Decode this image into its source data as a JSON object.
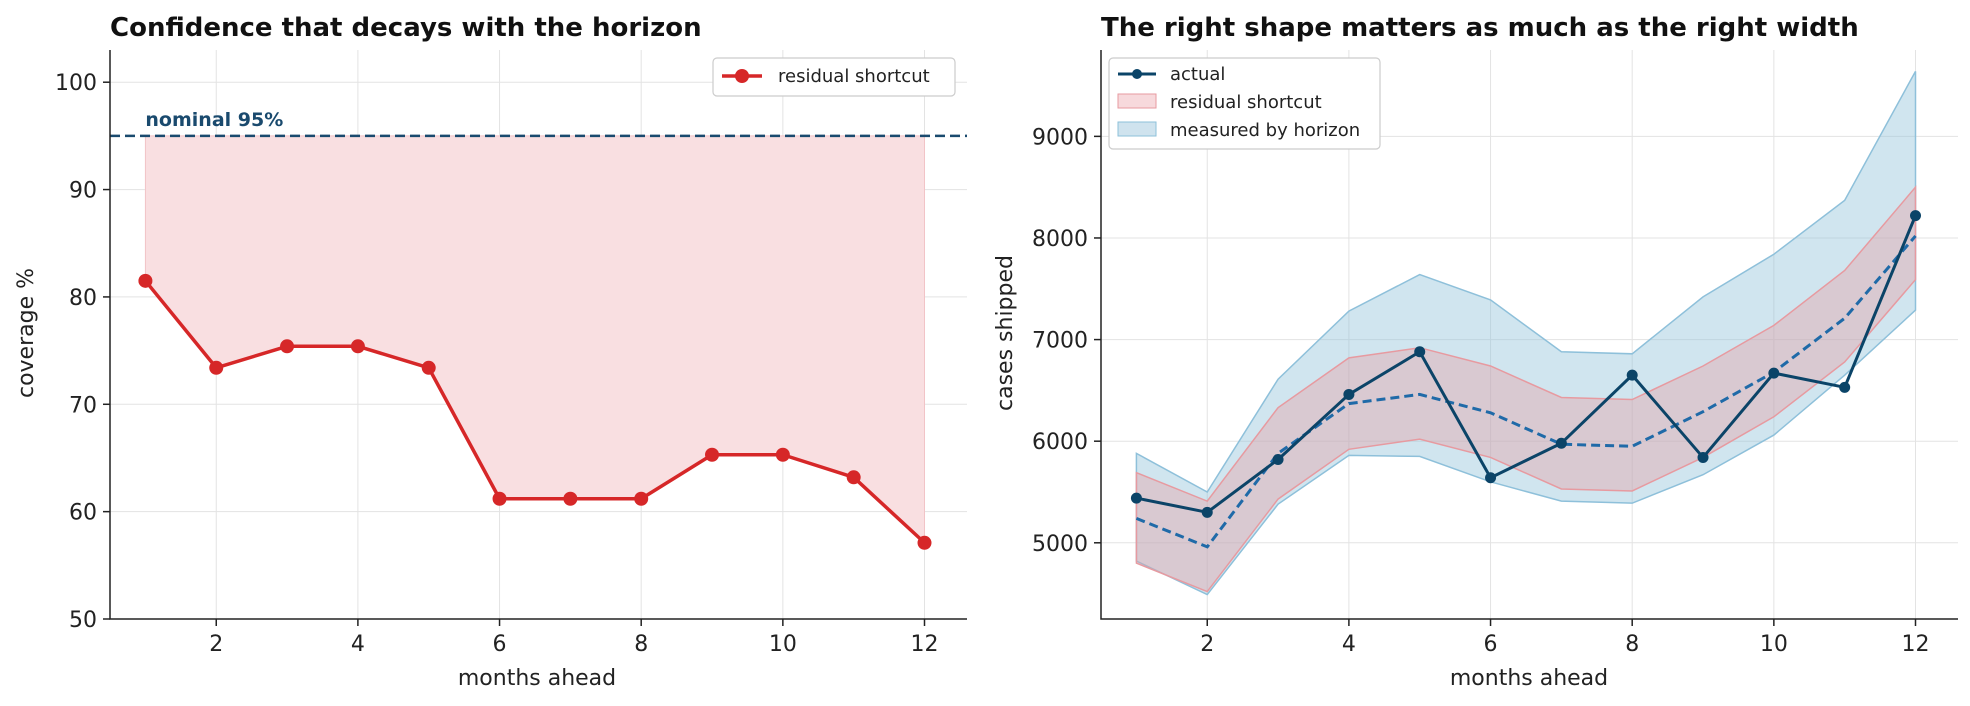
{
  "chart_data": [
    {
      "type": "line",
      "title": "Confidence that decays with the horizon",
      "xlabel": "months ahead",
      "ylabel": "coverage %",
      "xlim": [
        0.5,
        12.6
      ],
      "ylim": [
        50,
        103
      ],
      "xticks": [
        2,
        4,
        6,
        8,
        10,
        12
      ],
      "yticks": [
        50,
        60,
        70,
        80,
        90,
        100
      ],
      "grid": true,
      "legend_position": "upper right",
      "reference_line": {
        "y": 95,
        "label": "nominal 95%",
        "color": "#1a4a6e",
        "style": "dashed"
      },
      "series": [
        {
          "name": "residual shortcut",
          "color": "#d62728",
          "fill_to_reference": true,
          "x": [
            1,
            2,
            3,
            4,
            5,
            6,
            7,
            8,
            9,
            10,
            11,
            12
          ],
          "y": [
            81.5,
            73.4,
            75.4,
            75.4,
            73.4,
            61.2,
            61.2,
            61.2,
            65.3,
            65.3,
            63.2,
            57.1
          ]
        }
      ]
    },
    {
      "type": "line",
      "title": "The right shape matters as much as the right width",
      "xlabel": "months ahead",
      "ylabel": "cases shipped",
      "xlim": [
        0.5,
        12.6
      ],
      "ylim": [
        4250,
        9850
      ],
      "xticks": [
        2,
        4,
        6,
        8,
        10,
        12
      ],
      "yticks": [
        5000,
        6000,
        7000,
        8000,
        9000
      ],
      "grid": true,
      "legend_position": "upper left",
      "x": [
        1,
        2,
        3,
        4,
        5,
        6,
        7,
        8,
        9,
        10,
        11,
        12
      ],
      "series": [
        {
          "name": "actual",
          "color": "#0b4468",
          "values": [
            5440,
            5300,
            5820,
            6460,
            6880,
            5640,
            5980,
            6650,
            5840,
            6670,
            6530,
            8220
          ]
        },
        {
          "name": "",
          "color": "#1f6aa8",
          "style": "dashed",
          "values": [
            5240,
            4960,
            5880,
            6370,
            6460,
            6280,
            5970,
            5950,
            6290,
            6680,
            7210,
            8020
          ]
        }
      ],
      "bands": [
        {
          "name": "residual shortcut",
          "color": "#e79aa0",
          "lower": [
            4800,
            4520,
            5430,
            5920,
            6020,
            5840,
            5530,
            5510,
            5840,
            6240,
            6780,
            7590
          ],
          "upper": [
            5690,
            5410,
            6330,
            6820,
            6920,
            6740,
            6430,
            6410,
            6740,
            7140,
            7680,
            8500
          ]
        },
        {
          "name": "measured by horizon",
          "color": "#8ec0da",
          "lower": [
            4820,
            4490,
            5380,
            5860,
            5850,
            5600,
            5410,
            5390,
            5670,
            6060,
            6650,
            7290
          ],
          "upper": [
            5880,
            5500,
            6610,
            7280,
            7640,
            7390,
            6880,
            6860,
            7420,
            7840,
            8370,
            9640
          ]
        }
      ]
    }
  ]
}
